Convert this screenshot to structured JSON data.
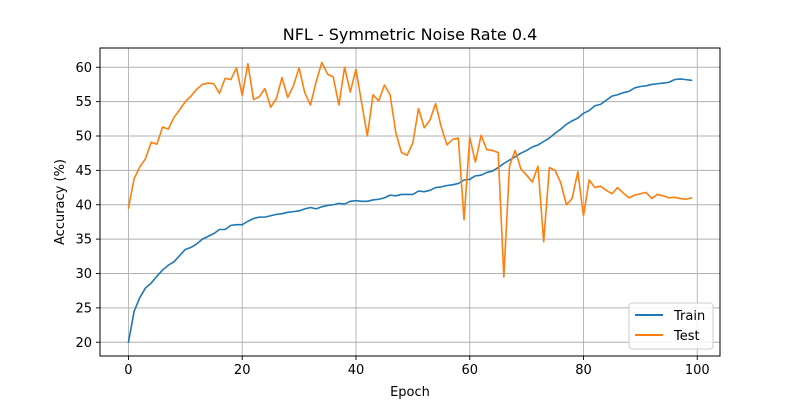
{
  "chart_data": {
    "type": "line",
    "title": "NFL - Symmetric Noise Rate 0.4",
    "xlabel": "Epoch",
    "ylabel": "Accuracy (%)",
    "xlim": [
      -5,
      104
    ],
    "ylim": [
      18.0,
      62.8
    ],
    "xticks": [
      0,
      20,
      40,
      60,
      80,
      100
    ],
    "yticks": [
      20,
      25,
      30,
      35,
      40,
      45,
      50,
      55,
      60
    ],
    "grid": true,
    "legend_position": "lower right",
    "series": [
      {
        "name": "Train",
        "color": "#1f77b4",
        "x": [
          0,
          1,
          2,
          3,
          4,
          5,
          6,
          7,
          8,
          9,
          10,
          11,
          12,
          13,
          14,
          15,
          16,
          17,
          18,
          19,
          20,
          21,
          22,
          23,
          24,
          25,
          26,
          27,
          28,
          29,
          30,
          31,
          32,
          33,
          34,
          35,
          36,
          37,
          38,
          39,
          40,
          41,
          42,
          43,
          44,
          45,
          46,
          47,
          48,
          49,
          50,
          51,
          52,
          53,
          54,
          55,
          56,
          57,
          58,
          59,
          60,
          61,
          62,
          63,
          64,
          65,
          66,
          67,
          68,
          69,
          70,
          71,
          72,
          73,
          74,
          75,
          76,
          77,
          78,
          79,
          80,
          81,
          82,
          83,
          84,
          85,
          86,
          87,
          88,
          89,
          90,
          91,
          92,
          93,
          94,
          95,
          96,
          97,
          98,
          99
        ],
        "values": [
          20.0,
          24.5,
          26.5,
          27.9,
          28.6,
          29.6,
          30.5,
          31.2,
          31.7,
          32.6,
          33.5,
          33.8,
          34.3,
          35.0,
          35.4,
          35.8,
          36.4,
          36.4,
          37.0,
          37.1,
          37.1,
          37.6,
          38.0,
          38.2,
          38.2,
          38.4,
          38.6,
          38.7,
          38.9,
          39.0,
          39.1,
          39.4,
          39.6,
          39.4,
          39.7,
          39.9,
          40.0,
          40.2,
          40.1,
          40.5,
          40.6,
          40.5,
          40.5,
          40.7,
          40.8,
          41.0,
          41.4,
          41.3,
          41.5,
          41.5,
          41.5,
          42.0,
          41.9,
          42.1,
          42.5,
          42.6,
          42.8,
          42.9,
          43.1,
          43.6,
          43.7,
          44.2,
          44.3,
          44.7,
          44.9,
          45.4,
          46.0,
          46.5,
          47.0,
          47.5,
          47.9,
          48.4,
          48.7,
          49.2,
          49.7,
          50.4,
          51.0,
          51.7,
          52.2,
          52.6,
          53.3,
          53.7,
          54.4,
          54.6,
          55.2,
          55.8,
          56.0,
          56.3,
          56.5,
          57.0,
          57.2,
          57.3,
          57.5,
          57.6,
          57.7,
          57.8,
          58.2,
          58.3,
          58.2,
          58.1
        ]
      },
      {
        "name": "Test",
        "color": "#ff7f0e",
        "x": [
          0,
          1,
          2,
          3,
          4,
          5,
          6,
          7,
          8,
          9,
          10,
          11,
          12,
          13,
          14,
          15,
          16,
          17,
          18,
          19,
          20,
          21,
          22,
          23,
          24,
          25,
          26,
          27,
          28,
          29,
          30,
          31,
          32,
          33,
          34,
          35,
          36,
          37,
          38,
          39,
          40,
          41,
          42,
          43,
          44,
          45,
          46,
          47,
          48,
          49,
          50,
          51,
          52,
          53,
          54,
          55,
          56,
          57,
          58,
          59,
          60,
          61,
          62,
          63,
          64,
          65,
          66,
          67,
          68,
          69,
          70,
          71,
          72,
          73,
          74,
          75,
          76,
          77,
          78,
          79,
          80,
          81,
          82,
          83,
          84,
          85,
          86,
          87,
          88,
          89,
          90,
          91,
          92,
          93,
          94,
          95,
          96,
          97,
          98,
          99
        ],
        "values": [
          39.5,
          43.8,
          45.5,
          46.7,
          49.1,
          48.8,
          51.3,
          51.0,
          52.7,
          53.8,
          55.0,
          55.8,
          56.8,
          57.5,
          57.7,
          57.6,
          56.2,
          58.4,
          58.2,
          59.9,
          55.9,
          60.5,
          55.3,
          55.7,
          56.9,
          54.2,
          55.4,
          58.5,
          55.6,
          57.3,
          59.9,
          56.3,
          54.5,
          57.9,
          60.7,
          59.0,
          58.6,
          54.5,
          60.0,
          56.4,
          59.7,
          54.8,
          50.0,
          56.0,
          55.1,
          57.4,
          56.0,
          50.5,
          47.6,
          47.2,
          49.0,
          54.0,
          51.2,
          52.3,
          54.7,
          51.3,
          48.7,
          49.5,
          49.7,
          37.8,
          49.8,
          46.2,
          50.1,
          48.0,
          47.9,
          47.6,
          29.5,
          45.7,
          47.9,
          45.2,
          44.3,
          43.3,
          45.6,
          34.6,
          45.4,
          45.0,
          43.2,
          40.0,
          40.9,
          44.8,
          38.4,
          43.6,
          42.5,
          42.7,
          42.1,
          41.6,
          42.5,
          41.7,
          41.0,
          41.4,
          41.6,
          41.8,
          40.9,
          41.5,
          41.3,
          41.0,
          41.1,
          40.9,
          40.8,
          41.0
        ]
      }
    ]
  }
}
